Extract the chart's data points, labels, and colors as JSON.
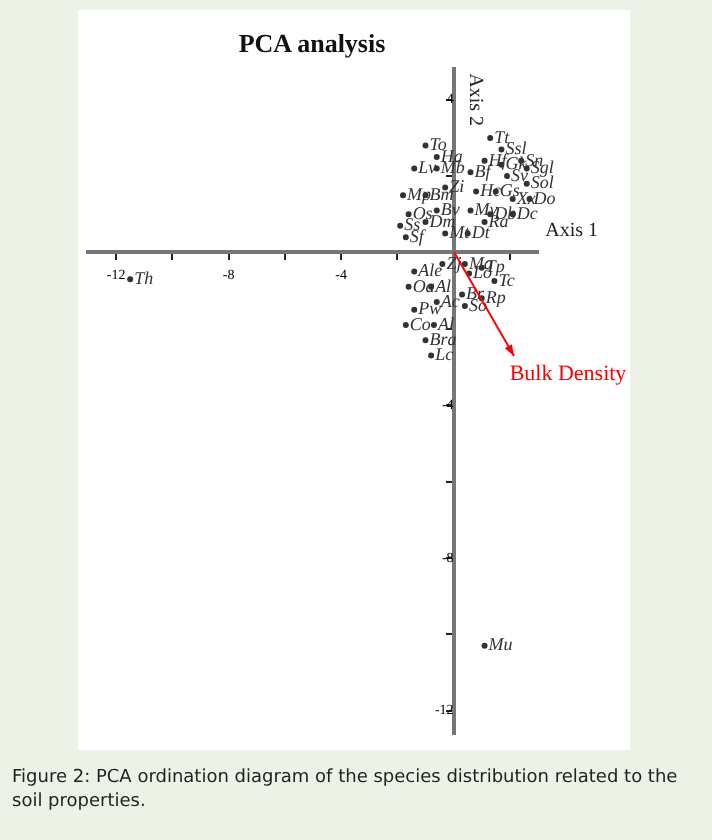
{
  "chart_data": {
    "type": "scatter",
    "title": "PCA analysis",
    "xlabel": "Axis 1",
    "ylabel": "Axis 2",
    "xlim": [
      -13,
      3
    ],
    "ylim": [
      -12.6,
      4.8
    ],
    "xticks": [
      {
        "value": -12,
        "label": "-12"
      },
      {
        "value": -10,
        "label": null
      },
      {
        "value": -8,
        "label": "-8"
      },
      {
        "value": -6,
        "label": null
      },
      {
        "value": -4,
        "label": "-4"
      },
      {
        "value": -2,
        "label": null
      },
      {
        "value": 2,
        "label": null
      }
    ],
    "yticks": [
      {
        "value": 4,
        "label": "4"
      },
      {
        "value": 2,
        "label": null
      },
      {
        "value": -2,
        "label": null
      },
      {
        "value": -4,
        "label": "-4"
      },
      {
        "value": -6,
        "label": null
      },
      {
        "value": -8,
        "label": "-8"
      },
      {
        "value": -10,
        "label": null
      },
      {
        "value": -12,
        "label": "-12"
      }
    ],
    "grid": false,
    "marker": "circle",
    "series": [
      {
        "color": "#333333",
        "x": [
          1.3,
          1.7,
          2.4,
          1.1,
          1.7,
          1.9,
          2.6,
          2.6,
          0.6,
          0.8,
          1.5,
          2.1,
          2.7,
          0.6,
          1.3,
          2.1,
          1.1,
          0.5,
          -1.0,
          -0.6,
          -1.4,
          -0.6,
          -0.3,
          -1.8,
          -1.0,
          -1.6,
          -0.6,
          -1.9,
          -1.0,
          -0.3,
          -1.7,
          -0.4,
          0.4,
          1.0,
          0.55,
          1.45,
          -1.4,
          -1.6,
          -0.8,
          0.3,
          1.0,
          0.4,
          -1.4,
          -0.6,
          -1.7,
          -0.7,
          -1.0,
          -0.8,
          -11.5,
          1.1
        ],
        "values": [
          3.0,
          2.7,
          2.4,
          2.4,
          2.3,
          2.0,
          2.2,
          1.8,
          2.1,
          1.6,
          1.6,
          1.4,
          1.4,
          1.1,
          1.0,
          1.0,
          0.8,
          0.5,
          2.8,
          2.5,
          2.2,
          2.2,
          1.7,
          1.5,
          1.5,
          1.0,
          1.1,
          0.7,
          0.8,
          0.5,
          0.4,
          -0.3,
          -0.3,
          -0.4,
          -0.55,
          -0.75,
          -0.5,
          -0.9,
          -0.9,
          -1.1,
          -1.2,
          -1.4,
          -1.5,
          -1.3,
          -1.9,
          -1.9,
          -2.3,
          -2.7,
          -0.7,
          -10.3
        ],
        "value_labels": [
          "Tt",
          "Ssl",
          "Sn",
          "Hf",
          "Gk",
          "Sv",
          "Sgl",
          "Sol",
          "Bf",
          "Hc",
          "Gs",
          "Xx",
          "Do",
          "Mv",
          "Db",
          "Dc",
          "Ra",
          "Dt",
          "To",
          "Ha",
          "Lv",
          "Mb",
          "Zi",
          "Mp",
          "Bm",
          "Os",
          "Bv",
          "Ss",
          "Dm",
          "Mt",
          "Sf",
          "Zj",
          "Ma",
          "Tp",
          "Lo",
          "Tc",
          "Ale",
          "Oa",
          "Al",
          "Br",
          "Rp",
          "So",
          "Pw",
          "Ac",
          "Co",
          "Al",
          "Bra",
          "Lc",
          "Th",
          "Mu"
        ]
      }
    ],
    "annotations": [
      "Bulk Density",
      "Figure 2: PCA ordination diagram of the species distribution related to the soil properties."
    ]
  }
}
